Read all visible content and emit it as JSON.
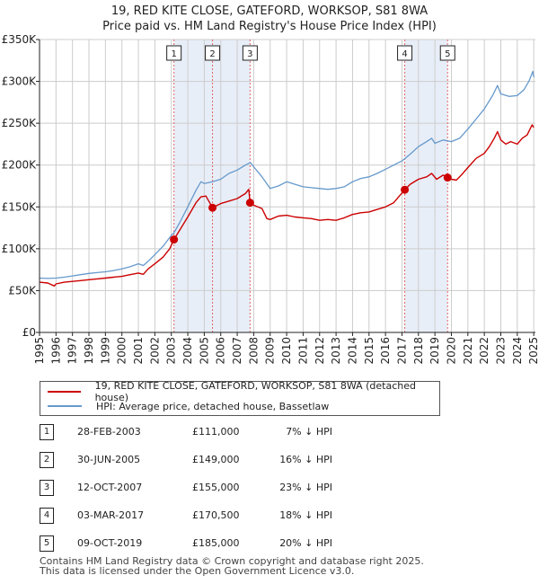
{
  "title_line1": "19, RED KITE CLOSE, GATEFORD, WORKSOP, S81 8WA",
  "title_line2": "Price paid vs. HM Land Registry's House Price Index (HPI)",
  "colors": {
    "price": "#cc0000",
    "hpi": "#6699cc",
    "shade": "#e8eef8",
    "marker_line": "#e06666",
    "grid": "#cccccc"
  },
  "chart_data": {
    "type": "line",
    "title": "19, RED KITE CLOSE, GATEFORD, WORKSOP, S81 8WA — Price paid vs. HM Land Registry's House Price Index (HPI)",
    "xlim": [
      1995,
      2025.1
    ],
    "ylim": [
      0,
      350000
    ],
    "y_ticks": [
      0,
      50000,
      100000,
      150000,
      200000,
      250000,
      300000,
      350000
    ],
    "y_tick_labels": [
      "£0",
      "£50K",
      "£100K",
      "£150K",
      "£200K",
      "£250K",
      "£300K",
      "£350K"
    ],
    "x_ticks": [
      1995,
      1996,
      1997,
      1998,
      1999,
      2000,
      2001,
      2002,
      2003,
      2004,
      2005,
      2006,
      2007,
      2008,
      2009,
      2010,
      2011,
      2012,
      2013,
      2014,
      2015,
      2016,
      2017,
      2018,
      2019,
      2020,
      2021,
      2022,
      2023,
      2024,
      2025
    ],
    "grid": true,
    "series": [
      {
        "name": "19, RED KITE CLOSE, GATEFORD, WORKSOP, S81 8WA (detached house)",
        "color": "#cc0000",
        "points": [
          [
            1995.0,
            60000
          ],
          [
            1995.5,
            59000
          ],
          [
            1995.9,
            55500
          ],
          [
            1996.0,
            58000
          ],
          [
            1996.5,
            60000
          ],
          [
            1997.0,
            61000
          ],
          [
            1997.5,
            62000
          ],
          [
            1998.0,
            63000
          ],
          [
            1998.5,
            64000
          ],
          [
            1999.0,
            65000
          ],
          [
            1999.5,
            66000
          ],
          [
            2000.0,
            67000
          ],
          [
            2000.5,
            69000
          ],
          [
            2001.0,
            71000
          ],
          [
            2001.3,
            69500
          ],
          [
            2001.6,
            76000
          ],
          [
            2002.0,
            82000
          ],
          [
            2002.5,
            90000
          ],
          [
            2002.9,
            100000
          ],
          [
            2003.16,
            111000
          ],
          [
            2003.5,
            122000
          ],
          [
            2004.0,
            138000
          ],
          [
            2004.5,
            155000
          ],
          [
            2004.8,
            162000
          ],
          [
            2005.1,
            163000
          ],
          [
            2005.5,
            149000
          ],
          [
            2005.8,
            152000
          ],
          [
            2006.0,
            154000
          ],
          [
            2006.5,
            157000
          ],
          [
            2007.0,
            160000
          ],
          [
            2007.5,
            166000
          ],
          [
            2007.7,
            171000
          ],
          [
            2007.78,
            155000
          ],
          [
            2008.0,
            152000
          ],
          [
            2008.5,
            148000
          ],
          [
            2008.8,
            136000
          ],
          [
            2009.0,
            135000
          ],
          [
            2009.5,
            139000
          ],
          [
            2010.0,
            140000
          ],
          [
            2010.5,
            138000
          ],
          [
            2011.0,
            137000
          ],
          [
            2011.5,
            136000
          ],
          [
            2012.0,
            134000
          ],
          [
            2012.5,
            135000
          ],
          [
            2013.0,
            134000
          ],
          [
            2013.5,
            137000
          ],
          [
            2014.0,
            141000
          ],
          [
            2014.5,
            143000
          ],
          [
            2015.0,
            144000
          ],
          [
            2015.5,
            147000
          ],
          [
            2016.0,
            150000
          ],
          [
            2016.5,
            155000
          ],
          [
            2016.8,
            162000
          ],
          [
            2017.17,
            170500
          ],
          [
            2017.5,
            177000
          ],
          [
            2018.0,
            183000
          ],
          [
            2018.5,
            186000
          ],
          [
            2018.8,
            190000
          ],
          [
            2019.1,
            183000
          ],
          [
            2019.5,
            188000
          ],
          [
            2019.77,
            185000
          ],
          [
            2020.0,
            183000
          ],
          [
            2020.3,
            182000
          ],
          [
            2020.6,
            188000
          ],
          [
            2021.0,
            197000
          ],
          [
            2021.5,
            208000
          ],
          [
            2022.0,
            214000
          ],
          [
            2022.3,
            222000
          ],
          [
            2022.6,
            232000
          ],
          [
            2022.8,
            240000
          ],
          [
            2023.0,
            230000
          ],
          [
            2023.3,
            225000
          ],
          [
            2023.6,
            228000
          ],
          [
            2024.0,
            225000
          ],
          [
            2024.3,
            232000
          ],
          [
            2024.6,
            236000
          ],
          [
            2024.9,
            248000
          ],
          [
            2025.0,
            245000
          ]
        ]
      },
      {
        "name": "HPI: Average price, detached house, Bassetlaw",
        "color": "#6699cc",
        "points": [
          [
            1995.0,
            65000
          ],
          [
            1995.5,
            64500
          ],
          [
            1996.0,
            65000
          ],
          [
            1996.5,
            66000
          ],
          [
            1997.0,
            67500
          ],
          [
            1997.5,
            69000
          ],
          [
            1998.0,
            70500
          ],
          [
            1998.5,
            71500
          ],
          [
            1999.0,
            72500
          ],
          [
            1999.5,
            74000
          ],
          [
            2000.0,
            76000
          ],
          [
            2000.5,
            78500
          ],
          [
            2001.0,
            82000
          ],
          [
            2001.3,
            80000
          ],
          [
            2001.6,
            85000
          ],
          [
            2002.0,
            93000
          ],
          [
            2002.5,
            103000
          ],
          [
            2003.0,
            116000
          ],
          [
            2003.16,
            119000
          ],
          [
            2003.5,
            131000
          ],
          [
            2004.0,
            150000
          ],
          [
            2004.5,
            170000
          ],
          [
            2004.8,
            180000
          ],
          [
            2005.0,
            178000
          ],
          [
            2005.5,
            180000
          ],
          [
            2006.0,
            183000
          ],
          [
            2006.5,
            190000
          ],
          [
            2007.0,
            194000
          ],
          [
            2007.5,
            200000
          ],
          [
            2007.8,
            203000
          ],
          [
            2008.0,
            198000
          ],
          [
            2008.5,
            186000
          ],
          [
            2009.0,
            172000
          ],
          [
            2009.5,
            175000
          ],
          [
            2010.0,
            180000
          ],
          [
            2010.5,
            177000
          ],
          [
            2011.0,
            174000
          ],
          [
            2011.5,
            173000
          ],
          [
            2012.0,
            172000
          ],
          [
            2012.5,
            171000
          ],
          [
            2013.0,
            172000
          ],
          [
            2013.5,
            174000
          ],
          [
            2014.0,
            180000
          ],
          [
            2014.5,
            184000
          ],
          [
            2015.0,
            186000
          ],
          [
            2015.5,
            190000
          ],
          [
            2016.0,
            195000
          ],
          [
            2016.5,
            200000
          ],
          [
            2017.0,
            205000
          ],
          [
            2017.5,
            213000
          ],
          [
            2018.0,
            222000
          ],
          [
            2018.5,
            228000
          ],
          [
            2018.8,
            232000
          ],
          [
            2019.0,
            226000
          ],
          [
            2019.5,
            230000
          ],
          [
            2020.0,
            228000
          ],
          [
            2020.5,
            232000
          ],
          [
            2021.0,
            243000
          ],
          [
            2021.5,
            255000
          ],
          [
            2022.0,
            267000
          ],
          [
            2022.5,
            283000
          ],
          [
            2022.8,
            295000
          ],
          [
            2023.0,
            285000
          ],
          [
            2023.5,
            282000
          ],
          [
            2024.0,
            283000
          ],
          [
            2024.4,
            290000
          ],
          [
            2024.7,
            300000
          ],
          [
            2024.95,
            312000
          ],
          [
            2025.0,
            305000
          ]
        ]
      }
    ],
    "transactions": [
      {
        "num": "1",
        "x": 2003.16,
        "price": 111000,
        "date": "28-FEB-2003",
        "price_label": "£111,000",
        "hpi_label": "7% ↓ HPI"
      },
      {
        "num": "2",
        "x": 2005.5,
        "price": 149000,
        "date": "30-JUN-2005",
        "price_label": "£149,000",
        "hpi_label": "16% ↓ HPI"
      },
      {
        "num": "3",
        "x": 2007.78,
        "price": 155000,
        "date": "12-OCT-2007",
        "price_label": "£155,000",
        "hpi_label": "23% ↓ HPI"
      },
      {
        "num": "4",
        "x": 2017.17,
        "price": 170500,
        "date": "03-MAR-2017",
        "price_label": "£170,500",
        "hpi_label": "18% ↓ HPI"
      },
      {
        "num": "5",
        "x": 2019.77,
        "price": 185000,
        "date": "09-OCT-2019",
        "price_label": "£185,000",
        "hpi_label": "20% ↓ HPI"
      }
    ],
    "shaded_ranges": [
      [
        2003.16,
        2007.78
      ],
      [
        2017.17,
        2019.77
      ]
    ]
  },
  "legend": {
    "price_label": "19, RED KITE CLOSE, GATEFORD, WORKSOP, S81 8WA (detached house)",
    "hpi_label": "HPI: Average price, detached house, Bassetlaw"
  },
  "footer": {
    "line1": "Contains HM Land Registry data © Crown copyright and database right 2025.",
    "line2": "This data is licensed under the Open Government Licence v3.0."
  }
}
